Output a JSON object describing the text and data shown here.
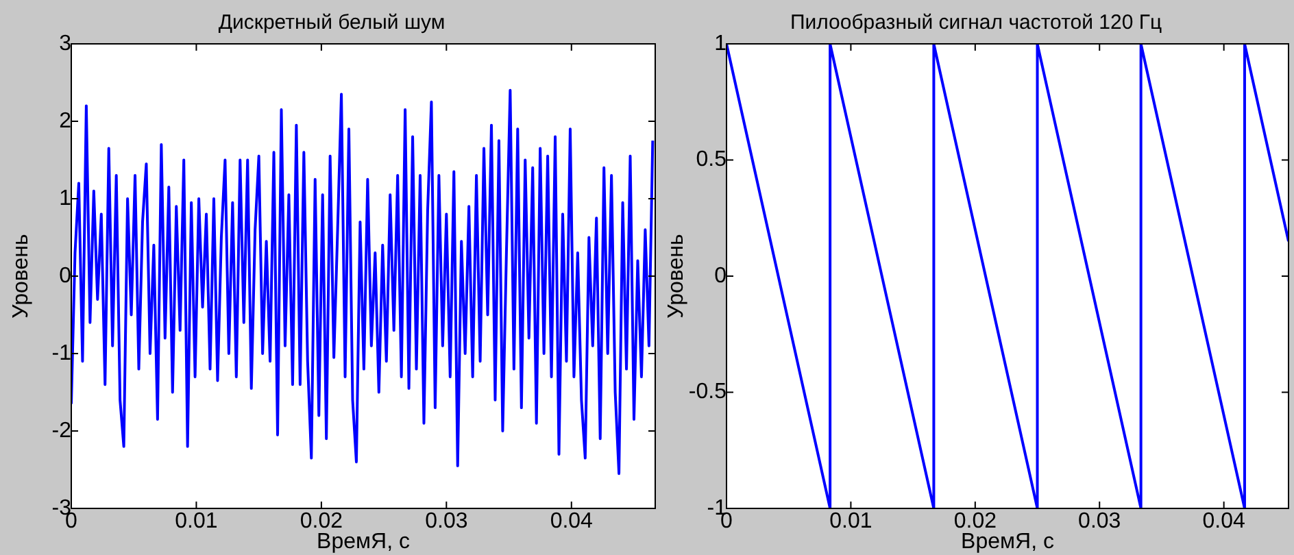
{
  "chart_data": [
    {
      "type": "line",
      "title": "Дискретный белый шум",
      "xlabel": "ВремЯ, с",
      "ylabel": "Уровень",
      "color": "#0000ff",
      "x": [
        0,
        0.0003,
        0.0006,
        0.0009,
        0.0012,
        0.0015,
        0.0018,
        0.0021,
        0.0024,
        0.0027,
        0.003,
        0.0033,
        0.0036,
        0.0039,
        0.0042,
        0.0045,
        0.0048,
        0.0051,
        0.0054,
        0.0057,
        0.006,
        0.0063,
        0.0066,
        0.0069,
        0.0072,
        0.0075,
        0.0078,
        0.0081,
        0.0084,
        0.0087,
        0.009,
        0.0093,
        0.0096,
        0.0099,
        0.0102,
        0.0105,
        0.0108,
        0.0111,
        0.0114,
        0.0117,
        0.012,
        0.0123,
        0.0126,
        0.0129,
        0.0132,
        0.0135,
        0.0138,
        0.0141,
        0.0144,
        0.0147,
        0.015,
        0.0153,
        0.0156,
        0.0159,
        0.0162,
        0.0165,
        0.0168,
        0.0171,
        0.0174,
        0.0177,
        0.018,
        0.0183,
        0.0186,
        0.0189,
        0.0192,
        0.0195,
        0.0198,
        0.0201,
        0.0204,
        0.0207,
        0.021,
        0.0213,
        0.0216,
        0.0219,
        0.0222,
        0.0225,
        0.0228,
        0.0231,
        0.0234,
        0.0237,
        0.024,
        0.0243,
        0.0246,
        0.0249,
        0.0252,
        0.0255,
        0.0258,
        0.0261,
        0.0264,
        0.0267,
        0.027,
        0.0273,
        0.0276,
        0.0279,
        0.0282,
        0.0285,
        0.0288,
        0.0291,
        0.0294,
        0.0297,
        0.03,
        0.0303,
        0.0306,
        0.0309,
        0.0312,
        0.0315,
        0.0318,
        0.0321,
        0.0324,
        0.0327,
        0.033,
        0.0333,
        0.0336,
        0.0339,
        0.0342,
        0.0345,
        0.0348,
        0.0351,
        0.0354,
        0.0357,
        0.036,
        0.0363,
        0.0366,
        0.0369,
        0.0372,
        0.0375,
        0.0378,
        0.0381,
        0.0384,
        0.0387,
        0.039,
        0.0393,
        0.0396,
        0.0399,
        0.0402,
        0.0405,
        0.0408,
        0.0411,
        0.0414,
        0.0417,
        0.042,
        0.0423,
        0.0426,
        0.0429,
        0.0432,
        0.0435,
        0.0438,
        0.0441,
        0.0444,
        0.0447,
        0.045,
        0.0453,
        0.0456,
        0.0459,
        0.0462,
        0.0465
      ],
      "values": [
        -1.65,
        0.3,
        1.2,
        -1.1,
        2.2,
        -0.6,
        1.1,
        -0.3,
        0.8,
        -1.4,
        1.65,
        -0.9,
        1.3,
        -1.6,
        -2.2,
        1.0,
        -0.5,
        1.3,
        -1.2,
        0.7,
        1.45,
        -1.0,
        0.4,
        -1.85,
        1.7,
        -0.8,
        1.15,
        -1.5,
        0.9,
        -0.7,
        1.5,
        -2.2,
        0.95,
        -1.3,
        1.0,
        -0.4,
        0.8,
        -1.2,
        1.0,
        -1.35,
        0.5,
        1.5,
        -1.0,
        0.95,
        -1.3,
        1.5,
        -0.6,
        1.5,
        -1.45,
        0.6,
        1.55,
        -1.0,
        0.45,
        -1.1,
        1.6,
        -2.05,
        2.15,
        -0.9,
        1.05,
        -1.4,
        1.95,
        -1.4,
        1.6,
        -1.1,
        -2.35,
        1.25,
        -1.8,
        1.05,
        -2.1,
        1.55,
        -1.05,
        0.6,
        2.35,
        -1.3,
        1.9,
        -1.6,
        -2.4,
        0.7,
        -1.2,
        1.25,
        -0.9,
        0.3,
        -1.5,
        0.4,
        -1.1,
        1.05,
        -0.7,
        1.3,
        -1.3,
        2.15,
        -1.45,
        1.8,
        -1.2,
        1.3,
        -1.9,
        0.85,
        2.25,
        -1.7,
        1.3,
        -0.9,
        0.8,
        -1.3,
        1.35,
        -2.45,
        0.45,
        -1.0,
        0.9,
        -1.3,
        1.3,
        -1.1,
        1.65,
        -0.5,
        1.95,
        -1.6,
        1.75,
        -2.0,
        0.3,
        2.4,
        -1.2,
        1.9,
        -1.7,
        1.5,
        -0.8,
        1.4,
        -1.9,
        1.65,
        -1.0,
        1.55,
        -1.3,
        1.8,
        -2.3,
        0.8,
        -1.1,
        1.9,
        -1.3,
        0.3,
        -1.6,
        -2.35,
        0.5,
        -0.9,
        0.75,
        -2.1,
        1.4,
        -1.0,
        1.3,
        -1.5,
        -2.55,
        0.95,
        -1.2,
        1.55,
        -1.85,
        0.2,
        -1.3,
        0.6,
        -0.9,
        1.75
      ],
      "xlim": [
        0,
        0.0467
      ],
      "ylim": [
        -3,
        3
      ],
      "xticks": [
        0,
        0.01,
        0.02,
        0.03,
        0.04
      ],
      "yticks": [
        -3,
        -2,
        -1,
        0,
        1,
        2,
        3
      ]
    },
    {
      "type": "line",
      "title": "Пилообразный сигнал частотой 120 Гц",
      "xlabel": "ВремЯ, с",
      "ylabel": "Уровень",
      "color": "#0000ff",
      "x": [
        0,
        0.00833,
        0.00833,
        0.01667,
        0.01667,
        0.025,
        0.025,
        0.03333,
        0.03333,
        0.04167,
        0.04167,
        0.0452
      ],
      "values": [
        1,
        -1,
        1,
        -1,
        1,
        -1,
        1,
        -1,
        1,
        -1,
        1,
        0.15
      ],
      "xlim": [
        0,
        0.0452
      ],
      "ylim": [
        -1,
        1
      ],
      "xticks": [
        0,
        0.01,
        0.02,
        0.03,
        0.04
      ],
      "yticks": [
        -1,
        -0.5,
        0,
        0.5,
        1
      ]
    }
  ]
}
